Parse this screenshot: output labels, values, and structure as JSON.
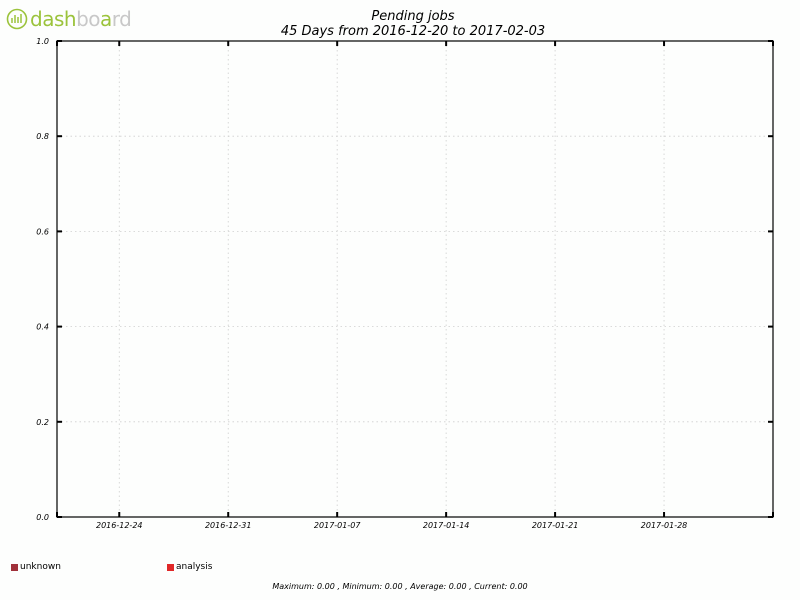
{
  "logo": {
    "text_part1": "d",
    "text_part2": "ash",
    "text_part3": "bo",
    "text_part4": "a",
    "text_part5": "rd"
  },
  "chart_data": {
    "type": "line",
    "title": "Pending jobs",
    "subtitle": "45 Days from 2016-12-20 to 2017-02-03",
    "x_range": [
      "2016-12-20",
      "2017-02-03"
    ],
    "x_ticks": [
      "2016-12-24",
      "2016-12-31",
      "2017-01-07",
      "2017-01-14",
      "2017-01-21",
      "2017-01-28"
    ],
    "ylim": [
      0.0,
      1.0
    ],
    "y_ticks": [
      "0.0",
      "0.2",
      "0.4",
      "0.6",
      "0.8",
      "1.0"
    ],
    "grid": true,
    "legend_placement": "bottom",
    "series": [
      {
        "name": "unknown",
        "color": "#a0303a",
        "values": []
      },
      {
        "name": "analysis",
        "color": "#e02828",
        "values": []
      }
    ],
    "stats": "Maximum: 0.00 , Minimum: 0.00 , Average: 0.00 , Current: 0.00"
  }
}
